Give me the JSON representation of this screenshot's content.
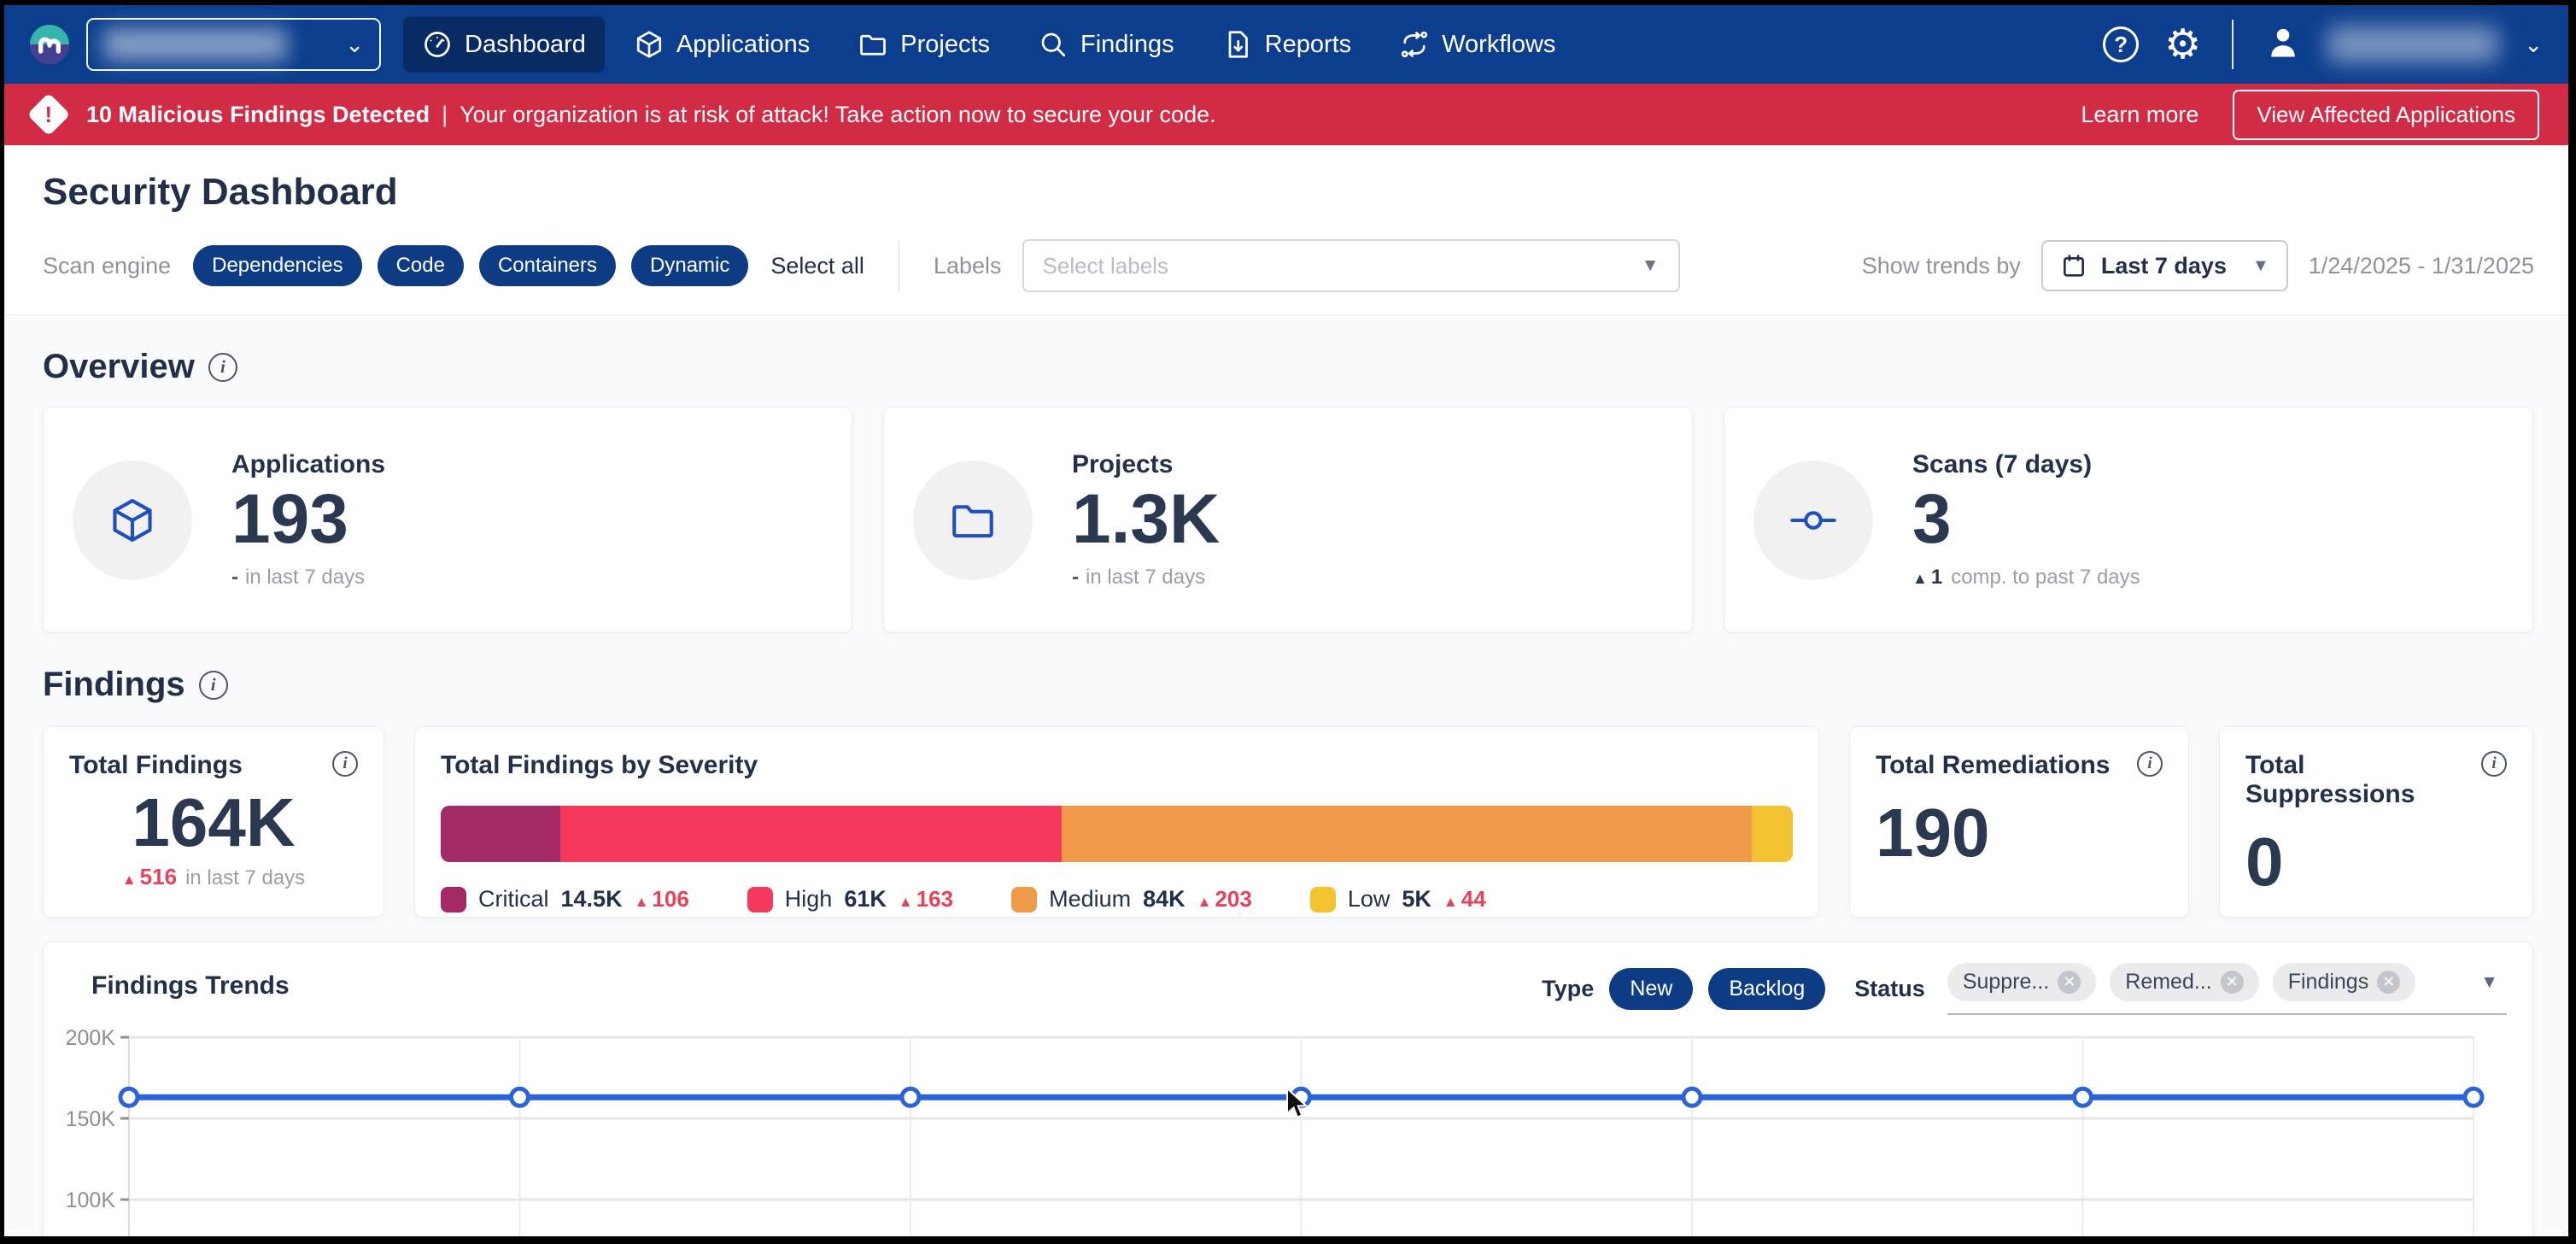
{
  "colors": {
    "nav_bg": "#0c3e8d",
    "nav_active_bg": "#082b63",
    "banner_bg": "#d22b45",
    "chip_navy": "#0d3c85",
    "heading_text": "#222f49",
    "number_text": "#2a3850",
    "muted_text": "#8e939c",
    "delta_up_red": "#e8425b",
    "trend_line": "#2b63d9"
  },
  "nav": {
    "items": [
      {
        "label": "Dashboard",
        "active": true
      },
      {
        "label": "Applications",
        "active": false
      },
      {
        "label": "Projects",
        "active": false
      },
      {
        "label": "Findings",
        "active": false
      },
      {
        "label": "Reports",
        "active": false
      },
      {
        "label": "Workflows",
        "active": false
      }
    ]
  },
  "banner": {
    "title": "10 Malicious Findings Detected",
    "separator": "|",
    "message": "Your organization is at risk of attack! Take action now to secure your code.",
    "learn_more": "Learn more",
    "cta": "View Affected Applications"
  },
  "page": {
    "title": "Security Dashboard"
  },
  "filters": {
    "scan_engine_label": "Scan engine",
    "engines": [
      "Dependencies",
      "Code",
      "Containers",
      "Dynamic"
    ],
    "select_all": "Select all",
    "labels_label": "Labels",
    "labels_placeholder": "Select labels",
    "show_trends_label": "Show trends by",
    "trend_range": "Last 7 days",
    "date_range": "1/24/2025 - 1/31/2025"
  },
  "overview": {
    "heading": "Overview",
    "cards": [
      {
        "label": "Applications",
        "value": "193",
        "delta": "-",
        "subtext": "in last 7 days"
      },
      {
        "label": "Projects",
        "value": "1.3K",
        "delta": "-",
        "subtext": "in last 7 days"
      },
      {
        "label": "Scans (7 days)",
        "value": "3",
        "delta": "1",
        "subtext": "comp. to past 7 days"
      }
    ]
  },
  "findings": {
    "heading": "Findings",
    "total_findings": {
      "title": "Total Findings",
      "value": "164K",
      "delta": "516",
      "subtext": "in last 7 days"
    },
    "severity": {
      "title": "Total Findings by Severity",
      "segments": [
        {
          "name": "Critical",
          "value": 14.5,
          "display": "14.5K",
          "delta": "106",
          "color": "#a32a67"
        },
        {
          "name": "High",
          "value": 61,
          "display": "61K",
          "delta": "163",
          "color": "#f5395c"
        },
        {
          "name": "Medium",
          "value": 84,
          "display": "84K",
          "delta": "203",
          "color": "#ee9a49"
        },
        {
          "name": "Low",
          "value": 5,
          "display": "5K",
          "delta": "44",
          "color": "#f4c331"
        }
      ]
    },
    "remediations": {
      "title": "Total Remediations",
      "value": "190"
    },
    "suppressions": {
      "title": "Total Suppressions",
      "value": "0"
    }
  },
  "trends": {
    "title": "Findings Trends",
    "type_label": "Type",
    "type_chips": [
      "New",
      "Backlog"
    ],
    "status_label": "Status",
    "status_chips": [
      "Suppre...",
      "Remed...",
      "Findings"
    ]
  },
  "chart_data": {
    "type": "line",
    "title": "Findings Trends",
    "series": [
      {
        "name": "Findings",
        "values": [
          163000,
          163000,
          163000,
          163000,
          163000,
          163000,
          163000
        ]
      }
    ],
    "y_ticks": [
      {
        "label": "200K",
        "value": 200000
      },
      {
        "label": "150K",
        "value": 150000
      },
      {
        "label": "100K",
        "value": 100000
      }
    ],
    "y_top": 200000,
    "y_unit_per_gridline": 50000,
    "grid": true,
    "legend_position": "none",
    "line_color": "#2b63d9",
    "marker": "open-circle"
  }
}
